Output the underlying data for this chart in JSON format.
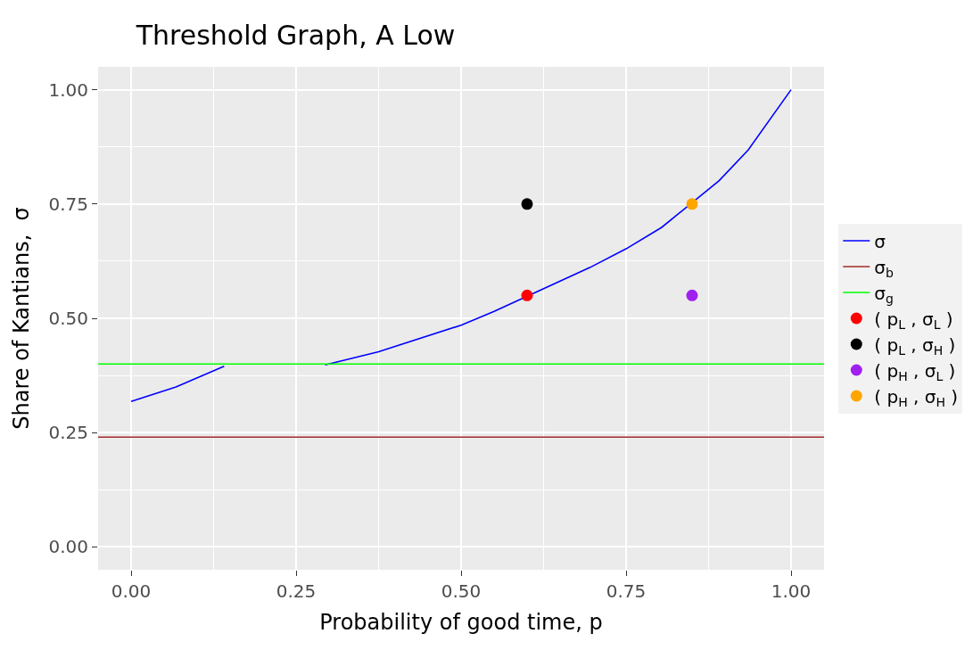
{
  "chart_data": {
    "type": "line",
    "title": "Threshold Graph, A Low",
    "xlabel": "Probability of good time, p",
    "ylabel": "Share of Kantians,  σ",
    "series": [
      {
        "name": "σ",
        "color": "#0000ff",
        "x": [
          0,
          0.068,
          0.141,
          null,
          0.294,
          0.375,
          0.5,
          0.55,
          0.695,
          0.75,
          0.804,
          0.891,
          0.935,
          1.0
        ],
        "values": [
          0.318,
          0.35,
          0.395,
          null,
          0.398,
          0.427,
          0.485,
          0.515,
          0.611,
          0.652,
          0.699,
          0.801,
          0.868,
          1.0
        ]
      },
      {
        "name": "σ$_{b}$",
        "color": "#a52a2a",
        "x": [
          -0.05,
          1.05
        ],
        "values": [
          0.24,
          0.24
        ]
      },
      {
        "name": "σ$_{g}$",
        "color": "#00ff00",
        "x": [
          -0.05,
          1.05
        ],
        "values": [
          0.4,
          0.4
        ]
      },
      {
        "name": "( p$_{L}$ , σ$_{L}$ )",
        "type": "scatter",
        "marker": "circle",
        "color": "#ff0000",
        "x": [
          0.6
        ],
        "values": [
          0.55
        ]
      },
      {
        "name": "( p$_{L}$ , σ$_{H}$ )",
        "type": "scatter",
        "marker": "circle",
        "color": "#000000",
        "x": [
          0.6
        ],
        "values": [
          0.75
        ]
      },
      {
        "name": "( p$_{H}$ , σ$_{L}$ )",
        "type": "scatter",
        "marker": "circle",
        "color": "#a020f0",
        "x": [
          0.85
        ],
        "values": [
          0.55
        ]
      },
      {
        "name": "( p$_{H}$ , σ$_{H}$ )",
        "type": "scatter",
        "marker": "circle",
        "color": "#ffa500",
        "x": [
          0.85
        ],
        "values": [
          0.75
        ]
      }
    ],
    "xlim": [
      -0.05,
      1.05
    ],
    "ylim": [
      -0.05,
      1.05
    ],
    "xticks": [
      {
        "value": 0,
        "label": "0.00"
      },
      {
        "value": 0.25,
        "label": "0.25"
      },
      {
        "value": 0.5,
        "label": "0.50"
      },
      {
        "value": 0.75,
        "label": "0.75"
      },
      {
        "value": 1,
        "label": "1.00"
      }
    ],
    "yticks": [
      {
        "value": 0,
        "label": "0.00"
      },
      {
        "value": 0.25,
        "label": "0.25"
      },
      {
        "value": 0.5,
        "label": "0.50"
      },
      {
        "value": 0.75,
        "label": "0.75"
      },
      {
        "value": 1,
        "label": "1.00"
      }
    ],
    "grid": true,
    "legend": "right"
  }
}
